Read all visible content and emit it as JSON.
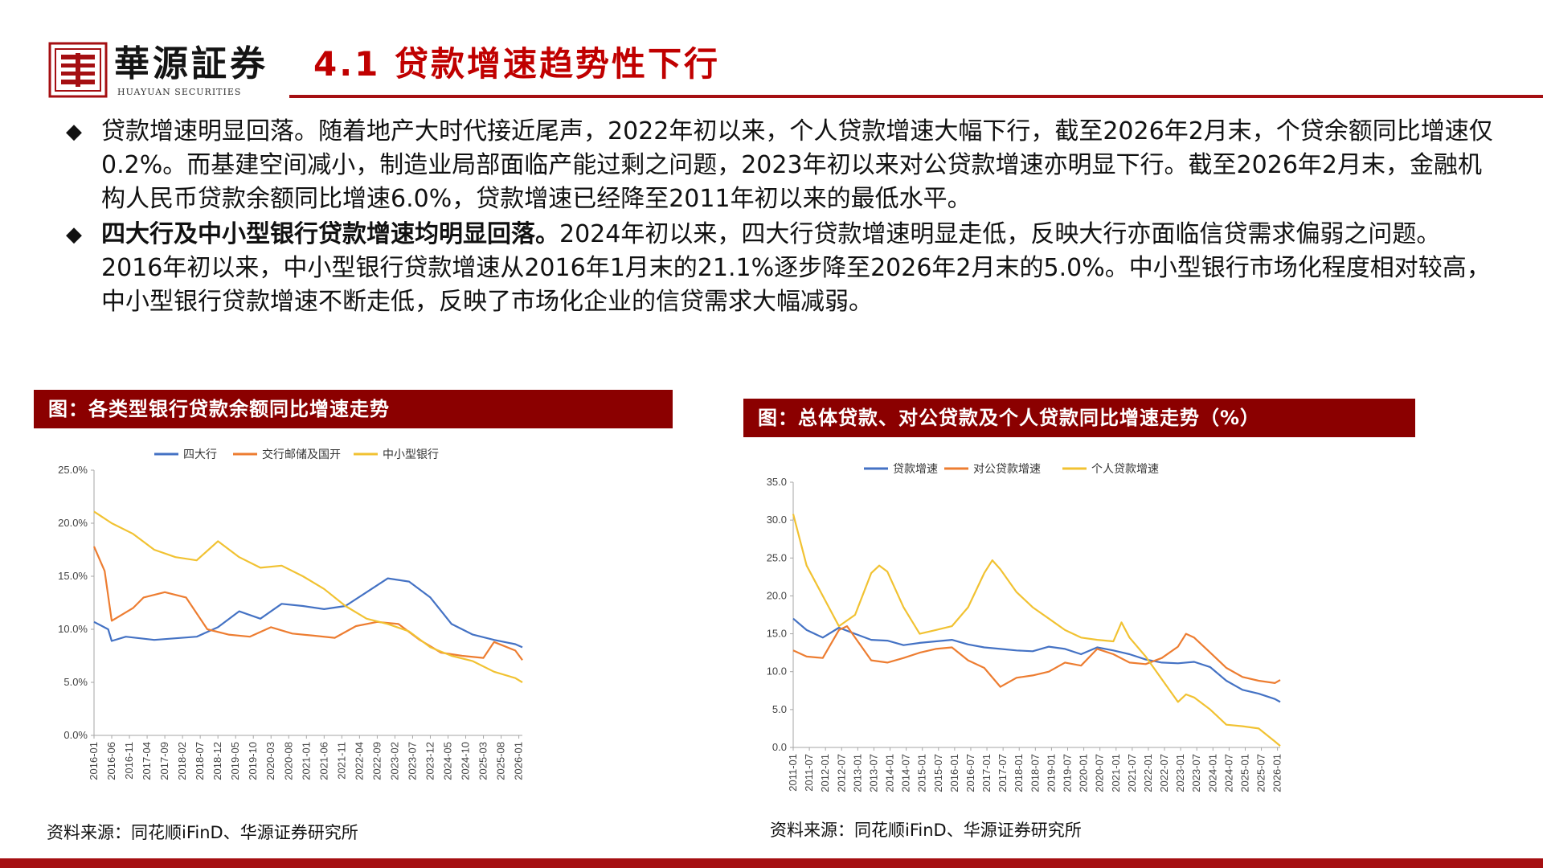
{
  "header": {
    "logo_cn": "華源証券",
    "logo_en": "HUAYUAN SECURITIES",
    "title": "4.1 贷款增速趋势性下行"
  },
  "colors": {
    "accent": "#a50f12",
    "title": "#c00000",
    "panel": "#8b0000"
  },
  "bullets": [
    {
      "bold": "",
      "text": "贷款增速明显回落。随着地产大时代接近尾声，2022年初以来，个人贷款增速大幅下行，截至2026年2月末，个贷余额同比增速仅0.2%。而基建空间减小，制造业局部面临产能过剩之问题，2023年初以来对公贷款增速亦明显下行。截至2026年2月末，金融机构人民币贷款余额同比增速6.0%，贷款增速已经降至2011年初以来的最低水平。"
    },
    {
      "bold": "四大行及中小型银行贷款增速均明显回落。",
      "text": "2024年初以来，四大行贷款增速明显走低，反映大行亦面临信贷需求偏弱之问题。2016年初以来，中小型银行贷款增速从2016年1月末的21.1%逐步降至2026年2月末的5.0%。中小型银行市场化程度相对较高，中小型银行贷款增速不断走低，反映了市场化企业的信贷需求大幅减弱。"
    }
  ],
  "panels": [
    {
      "title": "图：各类型银行贷款余额同比增速走势",
      "source": "资料来源：同花顺iFinD、华源证券研究所"
    },
    {
      "title": "图：总体贷款、对公贷款及个人贷款同比增速走势（%）",
      "source": "资料来源：同花顺iFinD、华源证券研究所"
    }
  ],
  "chart_data": [
    {
      "type": "line",
      "title": "",
      "xlabel": "",
      "ylabel": "",
      "ylim": [
        0,
        25
      ],
      "ytick_labels": [
        "0.0%",
        "5.0%",
        "10.0%",
        "15.0%",
        "20.0%",
        "25.0%"
      ],
      "yticks": [
        0,
        5,
        10,
        15,
        20,
        25
      ],
      "x_labels": [
        "2016-01",
        "2016-06",
        "2016-11",
        "2017-04",
        "2017-09",
        "2018-02",
        "2018-07",
        "2018-12",
        "2019-05",
        "2019-10",
        "2020-03",
        "2020-08",
        "2021-01",
        "2021-06",
        "2021-11",
        "2022-04",
        "2022-09",
        "2023-02",
        "2023-07",
        "2023-12",
        "2024-05",
        "2024-10",
        "2025-03",
        "2025-08",
        "2026-01"
      ],
      "x_range": [
        "2016-01",
        "2026-02"
      ],
      "legend_position": "top",
      "grid": false,
      "series": [
        {
          "name": "四大行",
          "color": "#4472c4",
          "points": [
            [
              "2016-01",
              10.7
            ],
            [
              "2016-05",
              10.0
            ],
            [
              "2016-06",
              8.9
            ],
            [
              "2016-10",
              9.3
            ],
            [
              "2017-06",
              9.0
            ],
            [
              "2018-06",
              9.3
            ],
            [
              "2018-12",
              10.2
            ],
            [
              "2019-06",
              11.7
            ],
            [
              "2019-12",
              11.0
            ],
            [
              "2020-06",
              12.4
            ],
            [
              "2020-12",
              12.2
            ],
            [
              "2021-06",
              11.9
            ],
            [
              "2021-12",
              12.2
            ],
            [
              "2022-06",
              13.5
            ],
            [
              "2022-12",
              14.8
            ],
            [
              "2023-06",
              14.5
            ],
            [
              "2023-12",
              13.0
            ],
            [
              "2024-06",
              10.5
            ],
            [
              "2024-12",
              9.5
            ],
            [
              "2025-06",
              9.0
            ],
            [
              "2025-12",
              8.6
            ],
            [
              "2026-02",
              8.3
            ]
          ]
        },
        {
          "name": "交行邮储及国开",
          "color": "#ed7d31",
          "points": [
            [
              "2016-01",
              17.8
            ],
            [
              "2016-04",
              15.5
            ],
            [
              "2016-06",
              10.8
            ],
            [
              "2016-12",
              12.0
            ],
            [
              "2017-03",
              13.0
            ],
            [
              "2017-09",
              13.5
            ],
            [
              "2018-03",
              13.0
            ],
            [
              "2018-09",
              10.0
            ],
            [
              "2019-03",
              9.5
            ],
            [
              "2019-09",
              9.3
            ],
            [
              "2020-03",
              10.2
            ],
            [
              "2020-09",
              9.6
            ],
            [
              "2021-03",
              9.4
            ],
            [
              "2021-09",
              9.2
            ],
            [
              "2022-03",
              10.3
            ],
            [
              "2022-09",
              10.7
            ],
            [
              "2023-03",
              10.5
            ],
            [
              "2023-09",
              9.0
            ],
            [
              "2024-03",
              7.8
            ],
            [
              "2024-09",
              7.5
            ],
            [
              "2025-03",
              7.3
            ],
            [
              "2025-06",
              8.8
            ],
            [
              "2025-12",
              8.0
            ],
            [
              "2026-02",
              7.1
            ]
          ]
        },
        {
          "name": "中小型银行",
          "color": "#f1c232",
          "points": [
            [
              "2016-01",
              21.1
            ],
            [
              "2016-06",
              20.0
            ],
            [
              "2016-12",
              19.0
            ],
            [
              "2017-06",
              17.5
            ],
            [
              "2017-12",
              16.8
            ],
            [
              "2018-06",
              16.5
            ],
            [
              "2018-12",
              18.3
            ],
            [
              "2019-06",
              16.8
            ],
            [
              "2019-12",
              15.8
            ],
            [
              "2020-06",
              16.0
            ],
            [
              "2020-12",
              15.0
            ],
            [
              "2021-06",
              13.8
            ],
            [
              "2021-12",
              12.2
            ],
            [
              "2022-06",
              11.0
            ],
            [
              "2022-12",
              10.5
            ],
            [
              "2023-06",
              9.8
            ],
            [
              "2023-12",
              8.3
            ],
            [
              "2024-06",
              7.5
            ],
            [
              "2024-12",
              7.0
            ],
            [
              "2025-06",
              6.0
            ],
            [
              "2025-12",
              5.4
            ],
            [
              "2026-02",
              5.0
            ]
          ]
        }
      ]
    },
    {
      "type": "line",
      "title": "",
      "xlabel": "",
      "ylabel": "",
      "ylim": [
        0,
        35
      ],
      "ytick_labels": [
        "0.0",
        "5.0",
        "10.0",
        "15.0",
        "20.0",
        "25.0",
        "30.0",
        "35.0"
      ],
      "yticks": [
        0,
        5,
        10,
        15,
        20,
        25,
        30,
        35
      ],
      "x_labels": [
        "2011-01",
        "2011-07",
        "2012-01",
        "2012-07",
        "2013-01",
        "2013-07",
        "2014-01",
        "2014-07",
        "2015-01",
        "2015-07",
        "2016-01",
        "2016-07",
        "2017-01",
        "2017-07",
        "2018-01",
        "2018-07",
        "2019-01",
        "2019-07",
        "2020-01",
        "2020-07",
        "2021-01",
        "2021-07",
        "2022-01",
        "2022-07",
        "2023-01",
        "2023-07",
        "2024-01",
        "2024-07",
        "2025-01",
        "2025-07",
        "2026-01"
      ],
      "x_range": [
        "2011-01",
        "2026-02"
      ],
      "legend_position": "top",
      "grid": false,
      "series": [
        {
          "name": "贷款增速",
          "color": "#4472c4",
          "points": [
            [
              "2011-01",
              17.0
            ],
            [
              "2011-06",
              15.5
            ],
            [
              "2011-12",
              14.5
            ],
            [
              "2012-06",
              15.8
            ],
            [
              "2012-12",
              15.0
            ],
            [
              "2013-06",
              14.2
            ],
            [
              "2013-12",
              14.1
            ],
            [
              "2014-06",
              13.5
            ],
            [
              "2014-12",
              13.8
            ],
            [
              "2015-06",
              14.0
            ],
            [
              "2015-12",
              14.2
            ],
            [
              "2016-06",
              13.6
            ],
            [
              "2016-12",
              13.2
            ],
            [
              "2017-06",
              13.0
            ],
            [
              "2017-12",
              12.8
            ],
            [
              "2018-06",
              12.7
            ],
            [
              "2018-12",
              13.3
            ],
            [
              "2019-06",
              13.0
            ],
            [
              "2019-12",
              12.3
            ],
            [
              "2020-06",
              13.2
            ],
            [
              "2020-12",
              12.8
            ],
            [
              "2021-06",
              12.3
            ],
            [
              "2021-12",
              11.6
            ],
            [
              "2022-06",
              11.2
            ],
            [
              "2022-12",
              11.1
            ],
            [
              "2023-06",
              11.3
            ],
            [
              "2023-12",
              10.6
            ],
            [
              "2024-06",
              8.8
            ],
            [
              "2024-12",
              7.6
            ],
            [
              "2025-06",
              7.1
            ],
            [
              "2025-12",
              6.4
            ],
            [
              "2026-02",
              6.0
            ]
          ]
        },
        {
          "name": "对公贷款增速",
          "color": "#ed7d31",
          "points": [
            [
              "2011-01",
              12.8
            ],
            [
              "2011-06",
              12.0
            ],
            [
              "2011-12",
              11.8
            ],
            [
              "2012-06",
              15.5
            ],
            [
              "2012-09",
              16.0
            ],
            [
              "2012-12",
              14.5
            ],
            [
              "2013-06",
              11.5
            ],
            [
              "2013-12",
              11.2
            ],
            [
              "2014-06",
              11.8
            ],
            [
              "2014-12",
              12.5
            ],
            [
              "2015-06",
              13.0
            ],
            [
              "2015-12",
              13.2
            ],
            [
              "2016-06",
              11.5
            ],
            [
              "2016-12",
              10.5
            ],
            [
              "2017-06",
              8.0
            ],
            [
              "2017-12",
              9.2
            ],
            [
              "2018-06",
              9.5
            ],
            [
              "2018-12",
              10.0
            ],
            [
              "2019-06",
              11.2
            ],
            [
              "2019-12",
              10.8
            ],
            [
              "2020-06",
              13.0
            ],
            [
              "2020-12",
              12.3
            ],
            [
              "2021-06",
              11.2
            ],
            [
              "2021-12",
              11.0
            ],
            [
              "2022-06",
              11.8
            ],
            [
              "2022-12",
              13.3
            ],
            [
              "2023-03",
              15.0
            ],
            [
              "2023-06",
              14.5
            ],
            [
              "2023-12",
              12.5
            ],
            [
              "2024-06",
              10.5
            ],
            [
              "2024-12",
              9.3
            ],
            [
              "2025-06",
              8.8
            ],
            [
              "2025-12",
              8.5
            ],
            [
              "2026-02",
              8.9
            ]
          ]
        },
        {
          "name": "个人贷款增速",
          "color": "#f1c232",
          "points": [
            [
              "2011-01",
              30.8
            ],
            [
              "2011-06",
              24.0
            ],
            [
              "2011-12",
              20.0
            ],
            [
              "2012-06",
              16.0
            ],
            [
              "2012-12",
              17.5
            ],
            [
              "2013-06",
              23.0
            ],
            [
              "2013-09",
              24.0
            ],
            [
              "2013-12",
              23.2
            ],
            [
              "2014-06",
              18.5
            ],
            [
              "2014-12",
              15.0
            ],
            [
              "2015-06",
              15.5
            ],
            [
              "2015-12",
              16.0
            ],
            [
              "2016-06",
              18.5
            ],
            [
              "2016-12",
              23.0
            ],
            [
              "2017-03",
              24.7
            ],
            [
              "2017-06",
              23.5
            ],
            [
              "2017-12",
              20.5
            ],
            [
              "2018-06",
              18.5
            ],
            [
              "2018-12",
              17.0
            ],
            [
              "2019-06",
              15.5
            ],
            [
              "2019-12",
              14.5
            ],
            [
              "2020-06",
              14.2
            ],
            [
              "2020-12",
              14.0
            ],
            [
              "2021-03",
              16.5
            ],
            [
              "2021-06",
              14.5
            ],
            [
              "2021-12",
              12.0
            ],
            [
              "2022-06",
              9.0
            ],
            [
              "2022-12",
              6.0
            ],
            [
              "2023-03",
              7.0
            ],
            [
              "2023-06",
              6.6
            ],
            [
              "2023-12",
              5.0
            ],
            [
              "2024-06",
              3.0
            ],
            [
              "2024-12",
              2.8
            ],
            [
              "2025-06",
              2.5
            ],
            [
              "2025-12",
              0.8
            ],
            [
              "2026-02",
              0.2
            ]
          ]
        }
      ]
    }
  ]
}
